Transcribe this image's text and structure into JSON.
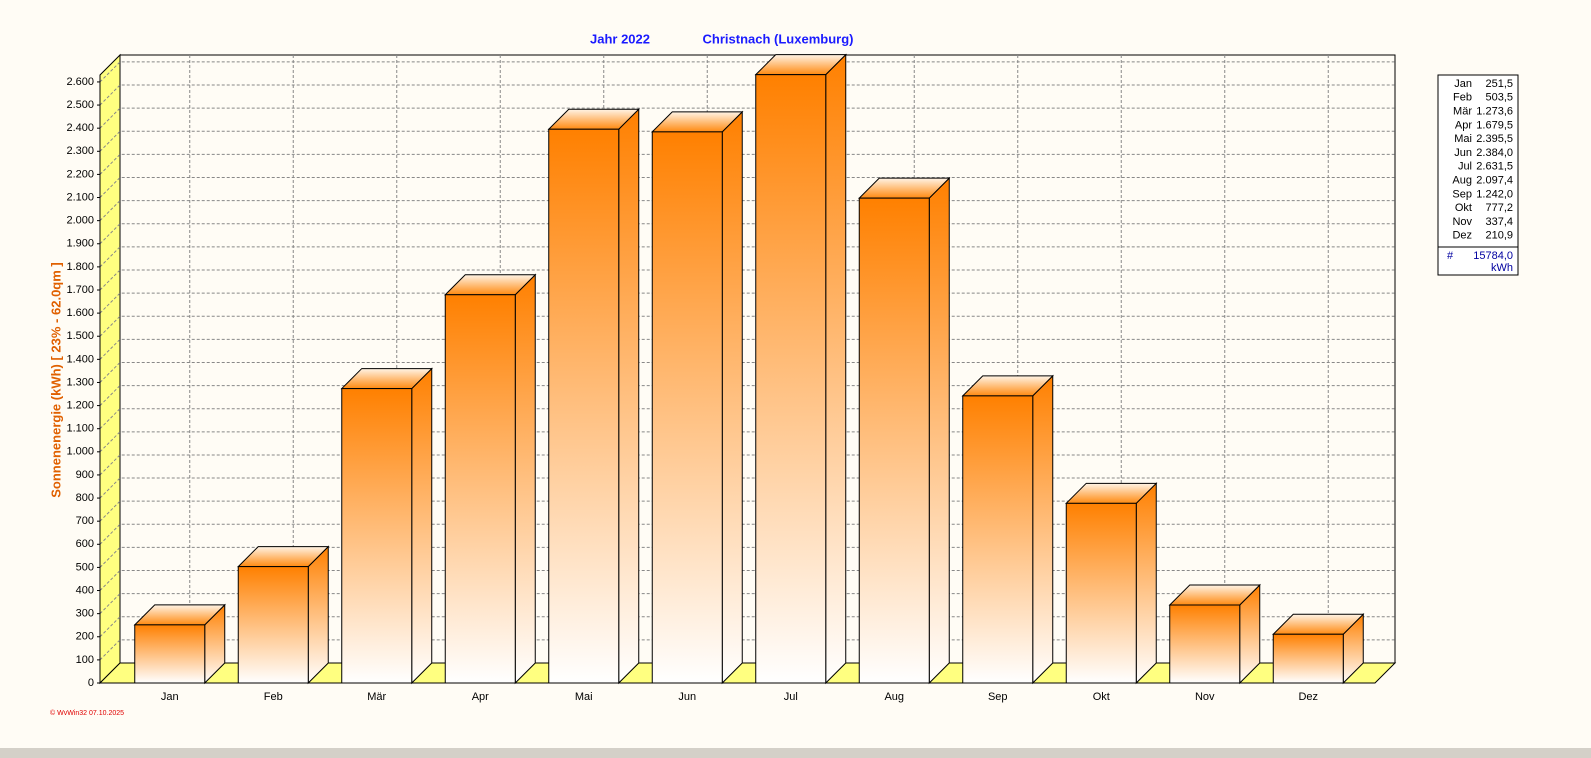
{
  "chart_data": {
    "type": "bar3d",
    "title": "Jahr  2022",
    "subtitle": "Christnach (Luxemburg)",
    "y_label": "Sonnenenergie  (kWh)    [ 23% - 62.0qm ]",
    "categories": [
      "Jan",
      "Feb",
      "Mär",
      "Apr",
      "Mai",
      "Jun",
      "Jul",
      "Aug",
      "Sep",
      "Okt",
      "Nov",
      "Dez"
    ],
    "values": [
      251.5,
      503.5,
      1273.6,
      1679.5,
      2395.5,
      2384.0,
      2631.5,
      2097.4,
      1242.0,
      777.2,
      337.4,
      210.9
    ],
    "value_labels": [
      "251,5",
      "503,5",
      "1.273,6",
      "1.679,5",
      "2.395,5",
      "2.384,0",
      "2.631,5",
      "2.097,4",
      "1.242,0",
      "777,2",
      "337,4",
      "210,9"
    ],
    "color": "#ff8000",
    "ylim": [
      0,
      2630
    ],
    "yticks": [
      0,
      100,
      200,
      300,
      400,
      500,
      600,
      700,
      800,
      900,
      {
        "value": 1000,
        "label": "1.000"
      },
      {
        "value": 1100,
        "label": "1.100"
      },
      {
        "value": 1200,
        "label": "1.200"
      },
      {
        "value": 1300,
        "label": "1.300"
      },
      {
        "value": 1400,
        "label": "1.400"
      },
      {
        "value": 1500,
        "label": "1.500"
      },
      {
        "value": 1600,
        "label": "1.600"
      },
      {
        "value": 1700,
        "label": "1.700"
      },
      {
        "value": 1800,
        "label": "1.800"
      },
      {
        "value": 1900,
        "label": "1.900"
      },
      {
        "value": 2000,
        "label": "2.000"
      },
      {
        "value": 2100,
        "label": "2.100"
      },
      {
        "value": 2200,
        "label": "2.200"
      },
      {
        "value": 2300,
        "label": "2.300"
      },
      {
        "value": 2400,
        "label": "2.400"
      },
      {
        "value": 2500,
        "label": "2.500"
      },
      {
        "value": 2600,
        "label": "2.600"
      }
    ],
    "grid": true,
    "total_symbol": "#",
    "total": {
      "value": 15784.0,
      "label": "15784,0"
    },
    "unit": "kWh",
    "footer": "© WvWin32  07.10.2025"
  }
}
